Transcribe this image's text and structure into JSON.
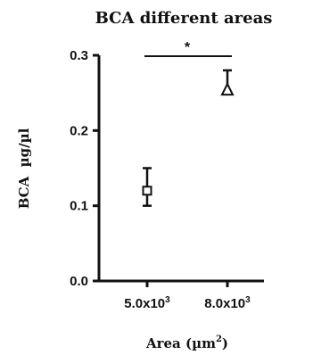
{
  "chart_data": {
    "type": "scatter",
    "title": "BCA different areas",
    "xlabel": "Area (µm",
    "xlabel_superscript": "2",
    "xlabel_suffix": ")",
    "ylabel": "BCA  µg/µl",
    "ylim": [
      0,
      0.3
    ],
    "yticks": [
      "0.0",
      "0.1",
      "0.2",
      "0.3"
    ],
    "ytick_values": [
      0,
      0.1,
      0.2,
      0.3
    ],
    "grid": false,
    "legend": "none",
    "categories": [
      {
        "base": "5.0x10",
        "exp": "3"
      },
      {
        "base": "8.0x10",
        "exp": "3"
      }
    ],
    "series": [
      {
        "marker": "square",
        "values": [
          0.12,
          null
        ],
        "error": [
          [
            0.1,
            0.15
          ],
          null
        ]
      },
      {
        "marker": "triangle",
        "values": [
          null,
          0.25
        ],
        "error": [
          null,
          [
            0.25,
            0.28
          ]
        ]
      }
    ],
    "annotations": [
      {
        "type": "significance-bar",
        "text": "*",
        "from": 0,
        "to": 1
      }
    ],
    "colors": {
      "ink": "#111111"
    }
  }
}
